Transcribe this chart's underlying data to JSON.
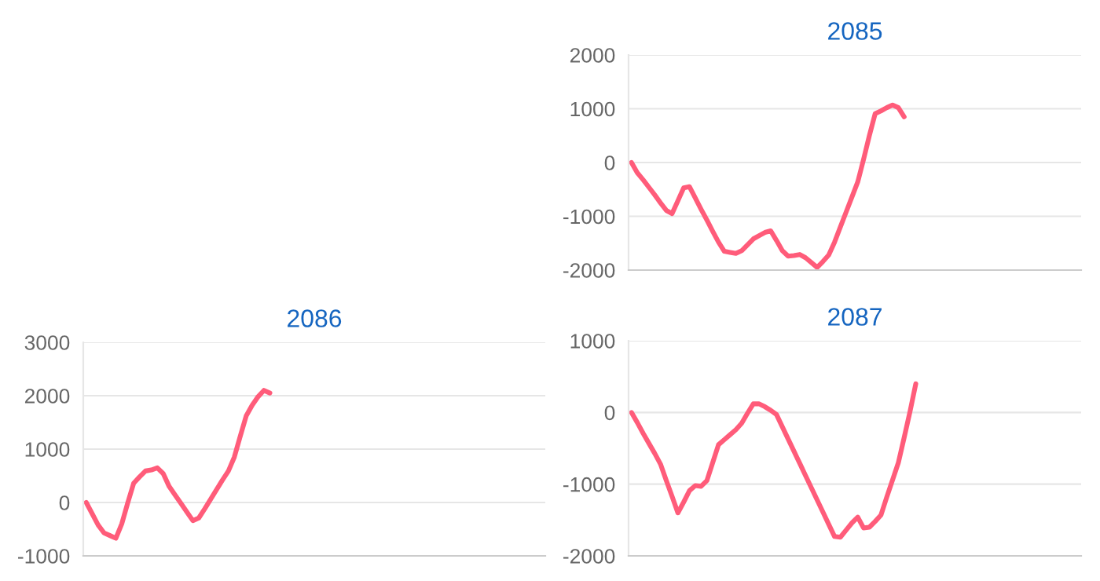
{
  "chart_data": [
    {
      "type": "line",
      "title": "2085",
      "categories": [
        null,
        null,
        null,
        null,
        null,
        null,
        null,
        null,
        null,
        null,
        null,
        null,
        null,
        null,
        null,
        null,
        null,
        null,
        null,
        null,
        null,
        null,
        null,
        null,
        null,
        null,
        null,
        null,
        null,
        null,
        null,
        null,
        null,
        null,
        null,
        null,
        null,
        null,
        null,
        null,
        null,
        null,
        null,
        null,
        null,
        null,
        null,
        null,
        null,
        null,
        null,
        null,
        null,
        null,
        null,
        null,
        null,
        null,
        null,
        null,
        null,
        null,
        null,
        null,
        null,
        null,
        null,
        null,
        null,
        null,
        null,
        null,
        null,
        null,
        null,
        null,
        null,
        null
      ],
      "series": [
        {
          "color": "#ff5c7a",
          "values": [
            0,
            -190,
            -320,
            -460,
            -600,
            -750,
            -890,
            -950,
            -710,
            -470,
            -450,
            -660,
            -870,
            -1070,
            -1280,
            -1480,
            -1650,
            -1670,
            -1690,
            -1640,
            -1530,
            -1420,
            -1360,
            -1300,
            -1270,
            -1450,
            -1640,
            -1740,
            -1730,
            -1710,
            -1770,
            -1860,
            -1950,
            -1840,
            -1720,
            -1480,
            -1200,
            -920,
            -640,
            -360,
            60,
            500,
            910,
            960,
            1020,
            1070,
            1020,
            850,
            null,
            null,
            null,
            null,
            null,
            null,
            null,
            null,
            null,
            null,
            null,
            null,
            null,
            null,
            null,
            null,
            null,
            null,
            null,
            null,
            null,
            null,
            null,
            null,
            null,
            null,
            null,
            null,
            null,
            null
          ]
        }
      ],
      "ylim": [
        -2000,
        2000
      ],
      "yticks": [
        -2000,
        -1000,
        0,
        1000,
        2000
      ],
      "grid": "y",
      "tick_labels": "y"
    },
    {
      "type": "line",
      "title": "2086",
      "categories": [
        null,
        null,
        null,
        null,
        null,
        null,
        null,
        null,
        null,
        null,
        null,
        null,
        null,
        null,
        null,
        null,
        null,
        null,
        null,
        null,
        null,
        null,
        null,
        null,
        null,
        null,
        null,
        null,
        null,
        null,
        null,
        null,
        null,
        null,
        null,
        null,
        null,
        null,
        null,
        null,
        null,
        null,
        null,
        null,
        null,
        null,
        null,
        null,
        null,
        null,
        null,
        null,
        null,
        null,
        null,
        null,
        null,
        null,
        null,
        null,
        null,
        null,
        null,
        null,
        null,
        null,
        null,
        null,
        null,
        null,
        null,
        null,
        null,
        null,
        null,
        null,
        null,
        null
      ],
      "series": [
        {
          "color": "#ff5c7a",
          "values": [
            0,
            -210,
            -420,
            -570,
            -620,
            -670,
            -400,
            -10,
            360,
            480,
            590,
            610,
            650,
            540,
            300,
            140,
            -20,
            -180,
            -340,
            -290,
            -120,
            60,
            240,
            420,
            590,
            850,
            1240,
            1620,
            1820,
            1980,
            2100,
            2050,
            null,
            null,
            null,
            null,
            null,
            null,
            null,
            null,
            null,
            null,
            null,
            null,
            null,
            null,
            null,
            null,
            null,
            null,
            null,
            null,
            null,
            null,
            null,
            null,
            null,
            null,
            null,
            null,
            null,
            null,
            null,
            null,
            null,
            null,
            null,
            null,
            null,
            null,
            null,
            null,
            null,
            null,
            null,
            null,
            null,
            null
          ]
        }
      ],
      "ylim": [
        -1000,
        3000
      ],
      "yticks": [
        -1000,
        0,
        1000,
        2000,
        3000
      ],
      "grid": "y",
      "tick_labels": "y"
    },
    {
      "type": "line",
      "title": "2087",
      "categories": [
        null,
        null,
        null,
        null,
        null,
        null,
        null,
        null,
        null,
        null,
        null,
        null,
        null,
        null,
        null,
        null,
        null,
        null,
        null,
        null,
        null,
        null,
        null,
        null,
        null,
        null,
        null,
        null,
        null,
        null,
        null,
        null,
        null,
        null,
        null,
        null,
        null,
        null,
        null,
        null,
        null,
        null,
        null,
        null,
        null,
        null,
        null,
        null,
        null,
        null,
        null,
        null,
        null,
        null,
        null,
        null,
        null,
        null,
        null,
        null,
        null,
        null,
        null,
        null,
        null,
        null,
        null,
        null,
        null,
        null,
        null,
        null,
        null,
        null,
        null,
        null,
        null,
        null
      ],
      "series": [
        {
          "color": "#ff5c7a",
          "values": [
            0,
            -140,
            -290,
            -430,
            -570,
            -720,
            -950,
            -1170,
            -1400,
            -1250,
            -1090,
            -1020,
            -1030,
            -950,
            -700,
            -450,
            -380,
            -310,
            -240,
            -150,
            -10,
            120,
            120,
            80,
            30,
            -30,
            -200,
            -370,
            -540,
            -710,
            -880,
            -1050,
            -1220,
            -1390,
            -1560,
            -1730,
            -1740,
            -1640,
            -1540,
            -1460,
            -1610,
            -1600,
            -1520,
            -1430,
            -1180,
            -940,
            -700,
            -350,
            10,
            400,
            null,
            null,
            null,
            null,
            null,
            null,
            null,
            null,
            null,
            null,
            null,
            null,
            null,
            null,
            null,
            null,
            null,
            null,
            null,
            null,
            null,
            null,
            null,
            null,
            null,
            null,
            null,
            null
          ]
        }
      ],
      "ylim": [
        -2000,
        1000
      ],
      "yticks": [
        -2000,
        -1000,
        0,
        1000
      ],
      "grid": "y",
      "tick_labels": "y"
    }
  ]
}
